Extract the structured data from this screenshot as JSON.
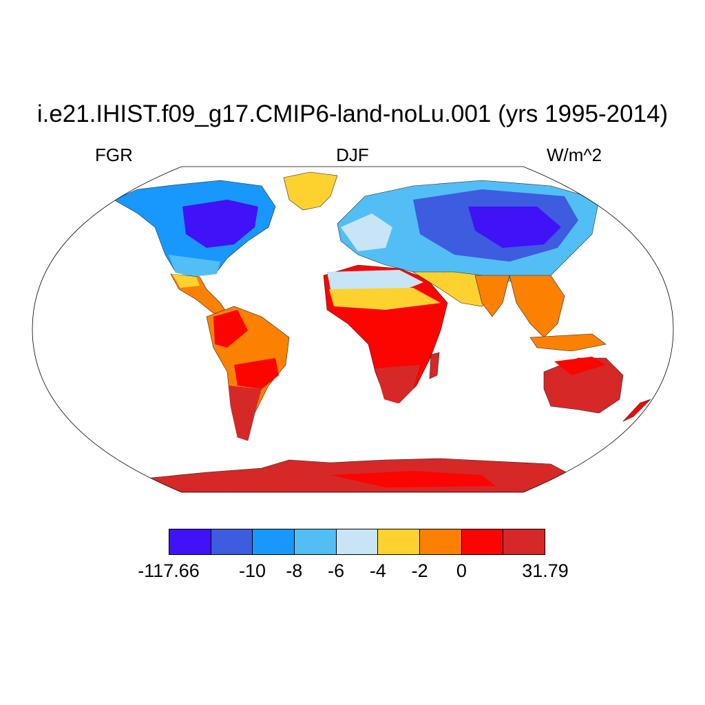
{
  "title": "i.e21.IHIST.f09_g17.CMIP6-land-noLu.001 (yrs 1995-2014)",
  "left_label": "FGR",
  "center_label": "DJF",
  "right_label": "W/m^2",
  "colorbar": {
    "colors": [
      "#3f12f7",
      "#3d5cdf",
      "#1898fc",
      "#52bef6",
      "#c8e5f6",
      "#fdd22f",
      "#fd8100",
      "#fc0400",
      "#d72828"
    ],
    "labels": [
      "-117.66",
      "-10",
      "-8",
      "-6",
      "-4",
      "-2",
      "0",
      "31.79"
    ]
  }
}
